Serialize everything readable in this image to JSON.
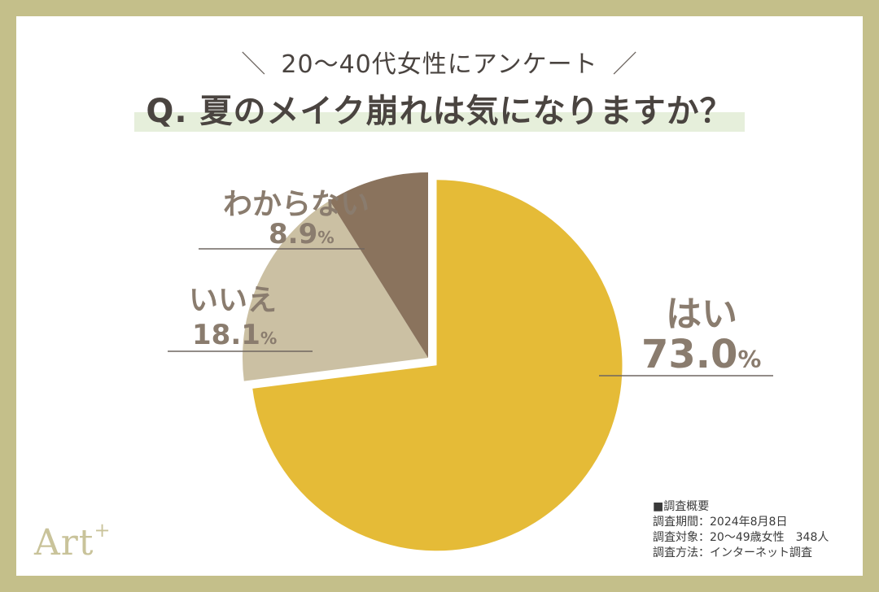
{
  "header": {
    "kicker_left": "＼",
    "kicker_text": "20〜40代女性にアンケート",
    "kicker_right": "／",
    "question": "Q. 夏のメイク崩れは気になりますか？"
  },
  "colors": {
    "frame": "#c4bf8a",
    "yes": "#e5bb37",
    "no": "#cbc0a3",
    "dont_know": "#8a735d",
    "label_text": "#8a7c6e",
    "band": "#e6efdb"
  },
  "chart_data": {
    "type": "pie",
    "title": "Q. 夏のメイク崩れは気になりますか？",
    "slices": [
      {
        "label": "はい",
        "value": 73.0,
        "display": "73.0",
        "color": "#e5bb37",
        "exploded": true
      },
      {
        "label": "いいえ",
        "value": 18.1,
        "display": "18.1",
        "color": "#cbc0a3",
        "exploded": false
      },
      {
        "label": "わからない",
        "value": 8.9,
        "display": "8.9",
        "color": "#8a735d",
        "exploded": false
      }
    ],
    "unit": "%",
    "start": "top, clockwise"
  },
  "survey": {
    "heading": "■調査概要",
    "period": "調査期間：2024年8月8日",
    "target": "調査対象：20〜49歳女性　348人",
    "method": "調査方法：インターネット調査"
  },
  "logo": {
    "text": "Art",
    "sup": "+"
  }
}
